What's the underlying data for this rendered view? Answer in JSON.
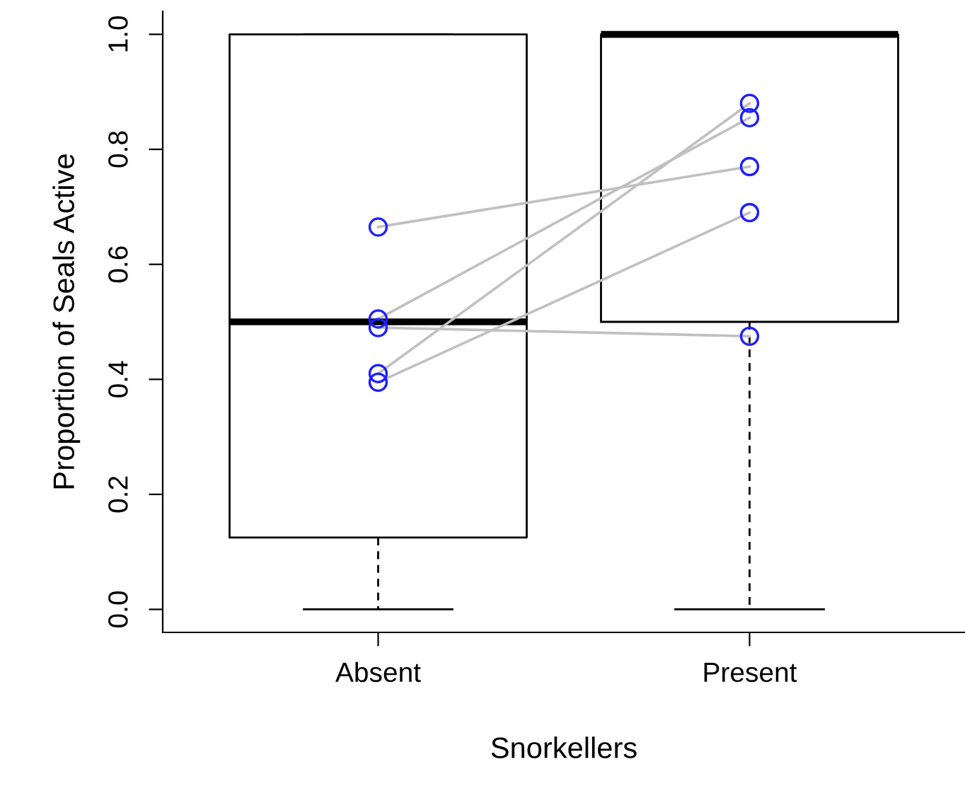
{
  "chart_data": {
    "type": "box",
    "xlabel": "Snorkellers",
    "ylabel": "Proportion of Seals Active",
    "categories": [
      "Absent",
      "Present"
    ],
    "boxes": [
      {
        "low": 0,
        "q1": 0.125,
        "median": 0.5,
        "q3": 1.0,
        "high": 1.0
      },
      {
        "low": 0,
        "q1": 0.5,
        "median": 1.0,
        "q3": 1.0,
        "high": 1.0
      }
    ],
    "ylim": [
      -0.04,
      1.04
    ],
    "yticks": [
      {
        "value": 0,
        "label": "0.0"
      },
      0.2,
      0.4,
      0.6,
      0.8,
      {
        "value": 1,
        "label": "1.0"
      }
    ],
    "series": [
      {
        "type": "line",
        "color": "#c0c0c0",
        "marker": "none",
        "values": [
          0.665,
          0.77
        ]
      },
      {
        "type": "line",
        "color": "#c0c0c0",
        "marker": "none",
        "values": [
          0.505,
          0.855
        ]
      },
      {
        "type": "line",
        "color": "#c0c0c0",
        "marker": "none",
        "values": [
          0.49,
          0.475
        ]
      },
      {
        "type": "line",
        "color": "#c0c0c0",
        "marker": "none",
        "values": [
          0.41,
          0.88
        ]
      },
      {
        "type": "line",
        "color": "#c0c0c0",
        "marker": "none",
        "values": [
          0.395,
          0.69
        ]
      },
      {
        "type": "scatter",
        "color": "#1f1fff",
        "marker": "circle",
        "x": [
          "Absent",
          "Absent",
          "Absent",
          "Absent",
          "Absent",
          "Present",
          "Present",
          "Present",
          "Present",
          "Present"
        ],
        "values": [
          0.665,
          0.505,
          0.49,
          0.41,
          0.395,
          0.77,
          0.855,
          0.475,
          0.88,
          0.69
        ]
      }
    ],
    "grid": false,
    "legend": false
  }
}
